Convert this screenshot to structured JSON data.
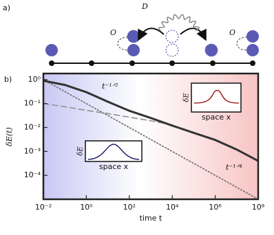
{
  "diagram": {
    "panel_label": "a)",
    "hop_label": "D",
    "left_link_label": "O",
    "right_link_label": "O"
  },
  "chart_data": {
    "type": "line",
    "panel_label": "b)",
    "xlabel": "time t",
    "ylabel": "δE(t)",
    "log_x": true,
    "log_y": true,
    "xlim": [
      0.01,
      100000000
    ],
    "ylim": [
      1e-05,
      1.8
    ],
    "xticks": [
      {
        "value": 0.01,
        "label": "10⁻²"
      },
      {
        "value": 1,
        "label": "10⁰"
      },
      {
        "value": 100,
        "label": "10²"
      },
      {
        "value": 10000,
        "label": "10⁴"
      },
      {
        "value": 1000000,
        "label": "10⁶"
      },
      {
        "value": 100000000,
        "label": "10⁸"
      }
    ],
    "yticks": [
      {
        "value": 1,
        "label": "10⁰"
      },
      {
        "value": 0.1,
        "label": "10⁻¹"
      },
      {
        "value": 0.01,
        "label": "10⁻²"
      },
      {
        "value": 0.001,
        "label": "10⁻³"
      },
      {
        "value": 0.0001,
        "label": "10⁻⁴"
      }
    ],
    "x": [
      0.01,
      0.1,
      1,
      10,
      100,
      1000,
      10000,
      100000,
      1000000,
      10000000,
      100000000
    ],
    "series": [
      {
        "color": "#333333",
        "style": "solid",
        "values": [
          0.9,
          0.6,
          0.3,
          0.12,
          0.05,
          0.025,
          0.012,
          0.006,
          0.003,
          0.0012,
          0.0004
        ]
      },
      {
        "color": "#999999",
        "style": "dashed",
        "values": [
          0.1,
          0.074,
          0.052,
          0.038,
          0.027,
          0.019,
          0.013,
          null,
          null,
          null,
          null
        ]
      },
      {
        "color": "#777777",
        "style": "dotted",
        "values": [
          1,
          0.316,
          0.1,
          0.0316,
          0.01,
          0.00316,
          0.001,
          0.000316,
          0.0001,
          3.16e-05,
          1e-05
        ]
      }
    ],
    "annotations": [
      "t⁻¹ᐟ²",
      "t⁻¹ᐟ⁴"
    ],
    "inset_ylabel": "δE",
    "inset_xlabel": "space x"
  }
}
